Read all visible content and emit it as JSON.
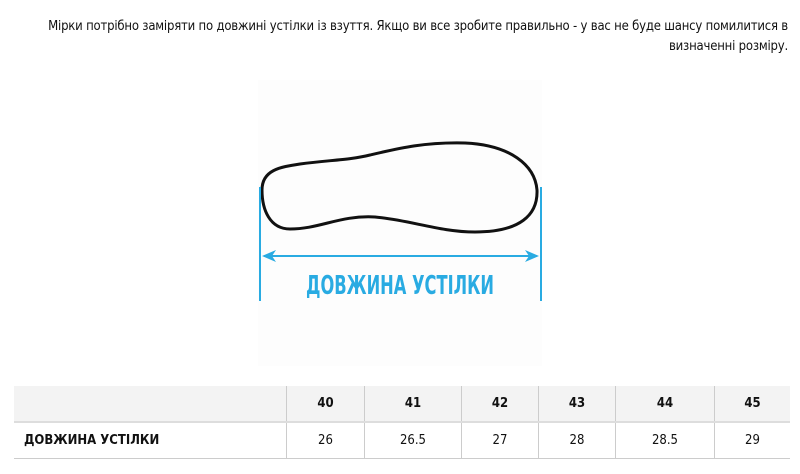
{
  "intro_text": "Мірки потрібно заміряти по довжині устілки із взуття. Якщо ви все зробите правильно - у вас не буде шансу помилитися в визначенні розміру.",
  "figure": {
    "label": "ДОВЖИНА УСТІЛКИ",
    "accent_color": "#29abe2"
  },
  "table": {
    "headers": [
      "",
      "40",
      "41",
      "42",
      "43",
      "44",
      "45"
    ],
    "rows": [
      {
        "label": "ДОВЖИНА УСТІЛКИ",
        "values": [
          "26",
          "26.5",
          "27",
          "28",
          "28.5",
          "29"
        ]
      }
    ]
  }
}
